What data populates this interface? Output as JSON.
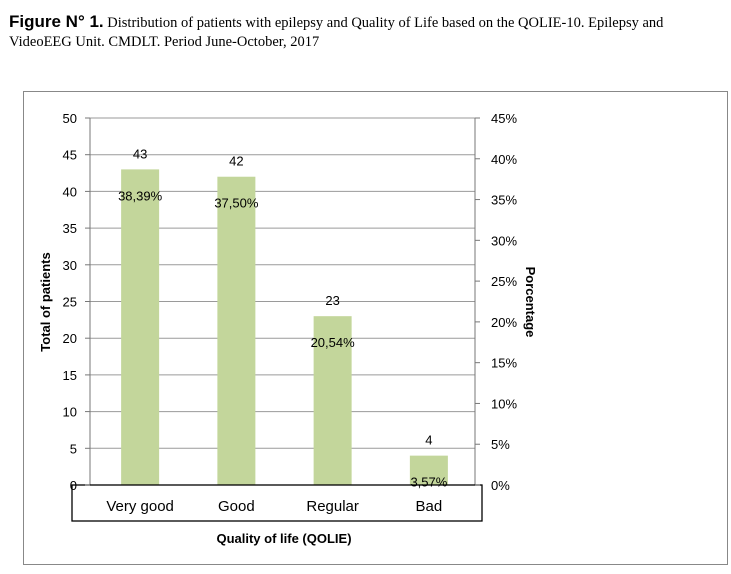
{
  "caption": {
    "figure_label": "Figure N° 1.",
    "text": "Distribution of patients with epilepsy and Quality of Life based on the QOLIE-10. Epilepsy and VideoEEG Unit. CMDLT. Period June-October, 2017"
  },
  "chart_data": {
    "type": "bar",
    "categories": [
      "Very good",
      "Good",
      "Regular",
      "Bad"
    ],
    "values": [
      43,
      42,
      23,
      4
    ],
    "data_labels": [
      "43",
      "42",
      "23",
      "4"
    ],
    "percent_labels": [
      "38,39%",
      "37,50%",
      "20,54%",
      "3,57%"
    ],
    "xlabel": "Quality of life (QOLIE)",
    "ylabel": "Total of patients",
    "y2label": "Porcentage",
    "ylim": [
      0,
      50
    ],
    "yticks": [
      "0",
      "5",
      "10",
      "15",
      "20",
      "25",
      "30",
      "35",
      "40",
      "45",
      "50"
    ],
    "y2ticks": [
      "0%",
      "5%",
      "10%",
      "15%",
      "20%",
      "25%",
      "30%",
      "35%",
      "40%",
      "45%"
    ],
    "grid": true,
    "bar_color": "#c3d69b"
  }
}
